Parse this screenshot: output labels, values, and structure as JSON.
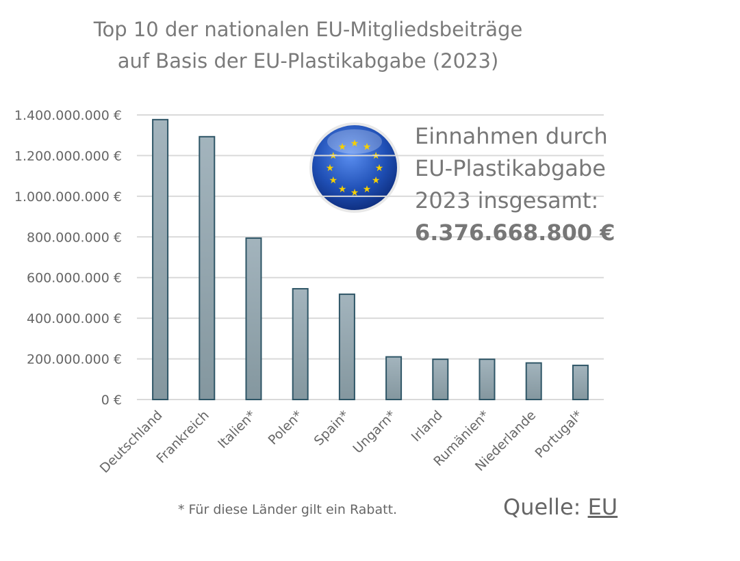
{
  "chart_data": {
    "type": "bar",
    "title": [
      "Top 10 der nationalen EU-Mitgliedsbeiträge",
      "auf Basis der EU-Plastikabgabe (2023)"
    ],
    "categories": [
      "Deutschland",
      "Frankreich",
      "Italien*",
      "Polen*",
      "Spain*",
      "Ungarn*",
      "Irland",
      "Rumänien*",
      "Niederlande",
      "Portugal*"
    ],
    "values": [
      1377000000,
      1293000000,
      794000000,
      545000000,
      518000000,
      210000000,
      198000000,
      198000000,
      180000000,
      168000000
    ],
    "ylim": [
      0,
      1400000000
    ],
    "yticks": [
      0,
      200000000,
      400000000,
      600000000,
      800000000,
      1000000000,
      1200000000,
      1400000000
    ],
    "ytick_labels": [
      "0 €",
      "200.000.000 €",
      "400.000.000 €",
      "600.000.000 €",
      "800.000.000 €",
      "1.000.000.000 €",
      "1.200.000.000 €",
      "1.400.000.000 €"
    ],
    "grid": true,
    "xlabel": "",
    "ylabel": "",
    "bar_color": "#8fa3ae",
    "bar_edge_color": "#2e5566"
  },
  "info": {
    "lines": [
      "Einnahmen durch",
      "EU-Plastikabgabe",
      "2023 insgesamt:"
    ],
    "total": "6.376.668.800 €"
  },
  "emblem": {
    "icon": "eu-flag-sphere-icon",
    "color": "#1f4fb5",
    "star_color": "#f5d000"
  },
  "footnote": "* Für diese Länder gilt ein Rabatt.",
  "source": {
    "label": "Quelle: ",
    "link": "EU"
  }
}
